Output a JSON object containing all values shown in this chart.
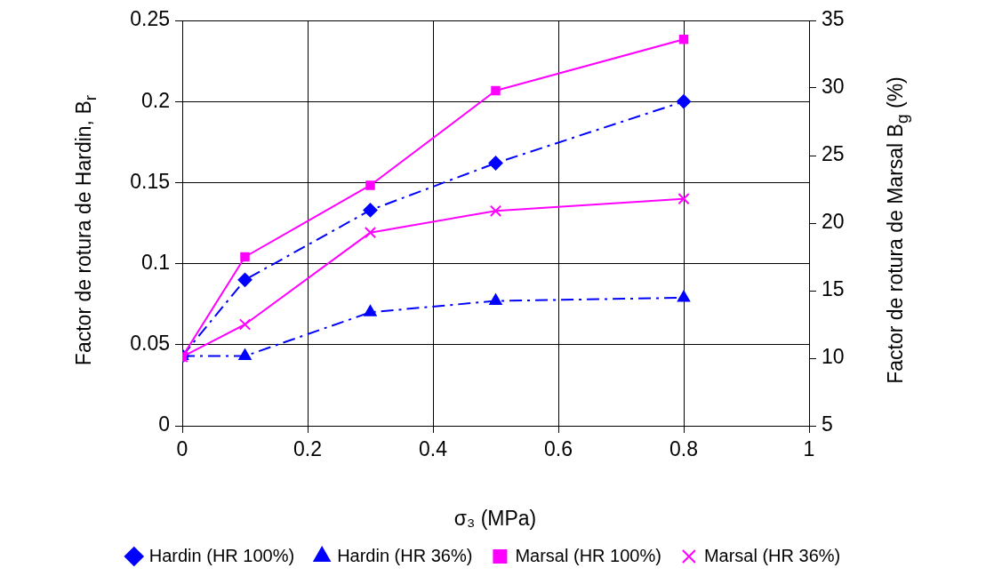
{
  "chart_data": {
    "type": "line",
    "xlabel": "σ₃ (MPa)",
    "ylabel": "Factor de rotura de Hardin, B$_{r}$",
    "y2label": "Factor de rotura de Marsal B$_{g}$ (%)",
    "x": [
      0,
      0.1,
      0.3,
      0.5,
      0.8
    ],
    "series": [
      {
        "name": "Hardin (HR 100%)",
        "color": "#0000ff",
        "values": [
          0.043,
          0.09,
          0.133,
          0.162,
          0.2
        ],
        "marker": "diamond",
        "line_style": "dashed"
      },
      {
        "name": "Hardin (HR 36%)",
        "color": "#0000ff",
        "values": [
          0.043,
          0.043,
          0.07,
          0.077,
          0.079
        ],
        "marker": "triangle",
        "line_style": "dashed"
      },
      {
        "name": "Marsal (HR 100%)",
        "color": "#ff00ff",
        "values": [
          10.1,
          17.5,
          22.8,
          29.8,
          33.6
        ],
        "marker": "square",
        "line_style": "solid",
        "axis": "y2"
      },
      {
        "name": "Marsal (HR 36%)",
        "color": "#ff00ff",
        "values": [
          10.1,
          12.5,
          19.3,
          20.9,
          21.8
        ],
        "marker": "cross",
        "line_style": "solid",
        "axis": "y2"
      }
    ],
    "xlim": [
      0,
      1
    ],
    "xticks": [
      0,
      0.2,
      0.4,
      0.6,
      0.8,
      1
    ],
    "ylim": [
      0,
      0.25
    ],
    "yticks": [
      0,
      0.05,
      0.1,
      0.15,
      0.2,
      0.25
    ],
    "y2lim": [
      5,
      35
    ],
    "y2ticks": [
      5,
      10,
      15,
      20,
      25,
      30,
      35
    ],
    "grid": true,
    "legend": "bottom"
  }
}
